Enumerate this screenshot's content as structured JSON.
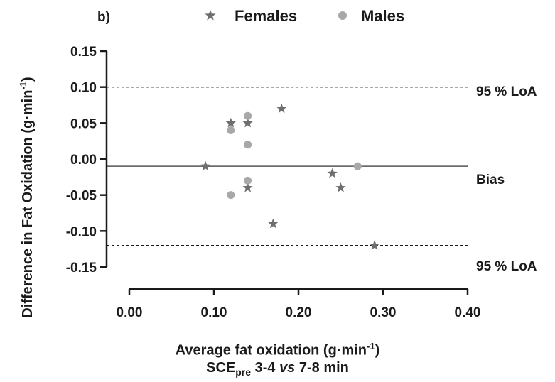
{
  "panel_label": "b)",
  "legend": {
    "females": {
      "label": "Females",
      "icon": "star-icon"
    },
    "males": {
      "label": "Males",
      "icon": "circle-icon"
    }
  },
  "annotations": {
    "upper_loa": "95 % LoA",
    "bias": "Bias",
    "lower_loa": "95 % LoA"
  },
  "axis_text": {
    "ylabel_main": "Difference in Fat Oxidation (g·min",
    "ylabel_sup": "-1",
    "ylabel_end": ")",
    "xlabel_main": "Average fat oxidation (g·min",
    "xlabel_sup": "-1",
    "xlabel_end": ")",
    "xlabel2_a": "SCE",
    "xlabel2_sub": "pre",
    "xlabel2_b": " 3-4 ",
    "xlabel2_vs": "vs",
    "xlabel2_c": " 7-8 min"
  },
  "colors": {
    "female_marker": "#6e6e6e",
    "male_marker": "#a8a8a8",
    "axis": "#1a1a1a",
    "bias_line": "#555555"
  },
  "chart_data": {
    "type": "scatter",
    "xlim": [
      0.0,
      0.4
    ],
    "ylim": [
      -0.15,
      0.15
    ],
    "xticks": [
      0.0,
      0.1,
      0.2,
      0.3,
      0.4
    ],
    "xtick_labels": [
      "0.00",
      "0.10",
      "0.20",
      "0.30",
      "0.40"
    ],
    "yticks": [
      -0.15,
      -0.1,
      -0.05,
      0.0,
      0.05,
      0.1,
      0.15
    ],
    "ytick_labels": [
      "-0.15",
      "-0.10",
      "-0.05",
      "0.00",
      "0.05",
      "0.10",
      "0.15"
    ],
    "bias": -0.01,
    "upper_loa": 0.1,
    "lower_loa": -0.12,
    "series": [
      {
        "name": "Females",
        "marker": "star",
        "points": [
          [
            0.09,
            -0.01
          ],
          [
            0.12,
            0.05
          ],
          [
            0.14,
            0.05
          ],
          [
            0.14,
            -0.04
          ],
          [
            0.17,
            -0.09
          ],
          [
            0.18,
            0.07
          ],
          [
            0.24,
            -0.02
          ],
          [
            0.25,
            -0.04
          ],
          [
            0.29,
            -0.12
          ]
        ]
      },
      {
        "name": "Males",
        "marker": "circle",
        "points": [
          [
            0.12,
            0.04
          ],
          [
            0.12,
            -0.05
          ],
          [
            0.14,
            0.06
          ],
          [
            0.14,
            0.02
          ],
          [
            0.14,
            -0.03
          ],
          [
            0.27,
            -0.01
          ]
        ]
      }
    ]
  }
}
